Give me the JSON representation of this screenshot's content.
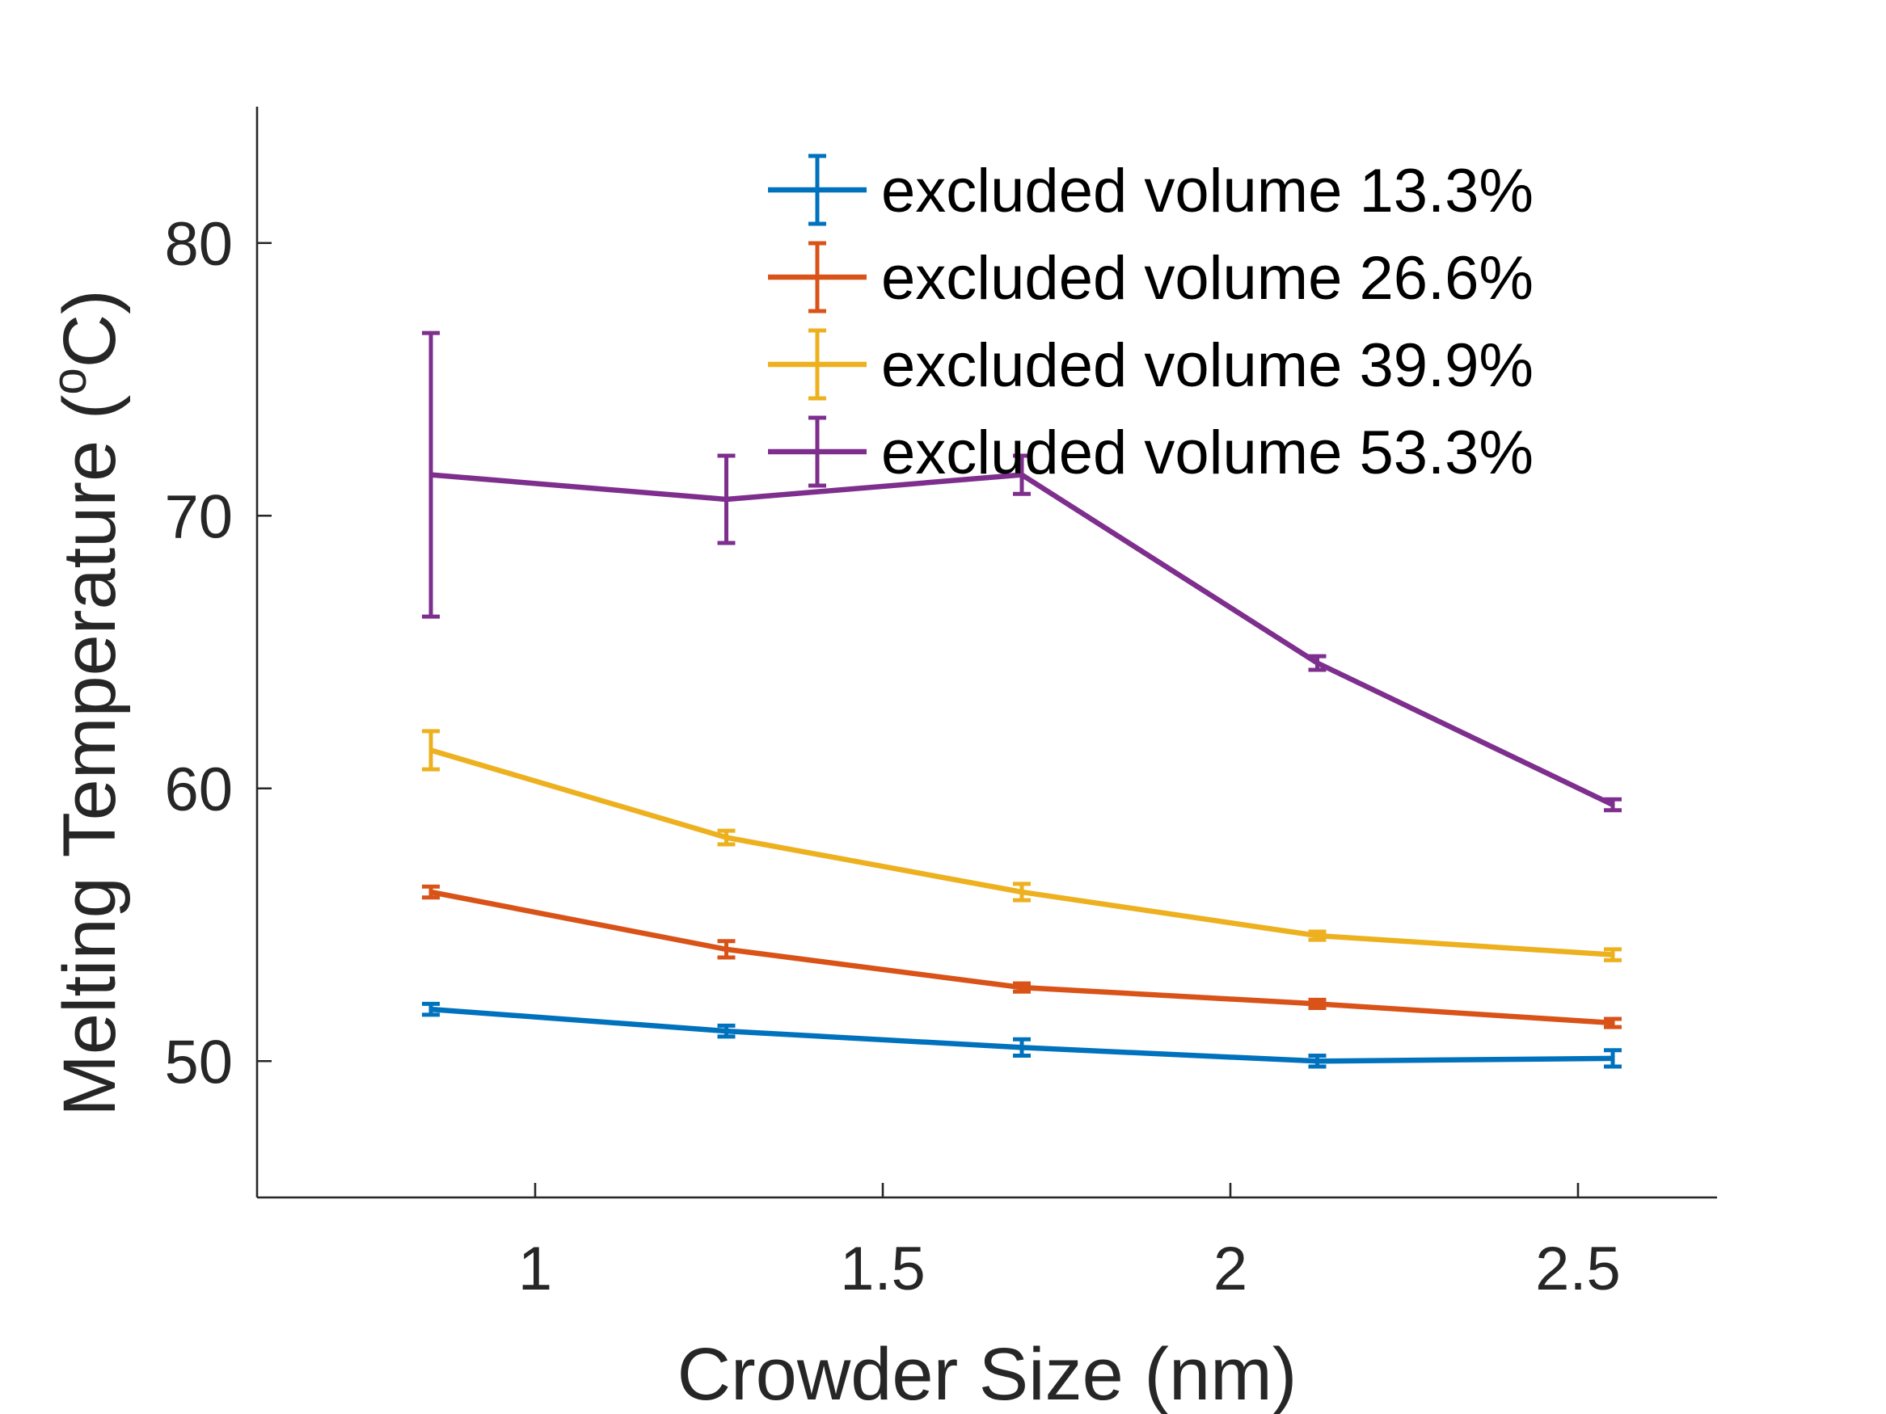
{
  "chart_data": {
    "type": "line",
    "xlabel": "Crowder Size (nm)",
    "ylabel_main": "Melting Temperature (",
    "ylabel_sup": "o",
    "ylabel_end": "C)",
    "xlim": [
      0.6,
      2.7
    ],
    "ylim": [
      45,
      85
    ],
    "xticks": [
      1,
      1.5,
      2,
      2.5
    ],
    "xtick_labels": [
      "1",
      "1.5",
      "2",
      "2.5"
    ],
    "yticks": [
      50,
      60,
      70,
      80
    ],
    "ytick_labels": [
      "50",
      "60",
      "70",
      "80"
    ],
    "grid": false,
    "legend_position": "top-right",
    "x": [
      0.85,
      1.275,
      1.7,
      2.125,
      2.55
    ],
    "series": [
      {
        "name": "excluded volume 13.3%",
        "color": "#0072BD",
        "values": [
          51.9,
          51.1,
          50.5,
          50.0,
          50.1
        ],
        "errors": [
          0.2,
          0.2,
          0.3,
          0.2,
          0.3
        ]
      },
      {
        "name": "excluded volume 26.6%",
        "color": "#D95319",
        "values": [
          56.2,
          54.1,
          52.7,
          52.1,
          51.4
        ],
        "errors": [
          0.2,
          0.3,
          0.15,
          0.15,
          0.15
        ]
      },
      {
        "name": "excluded volume 39.9%",
        "color": "#EDB120",
        "values": [
          61.4,
          58.2,
          56.2,
          54.6,
          53.9
        ],
        "errors": [
          0.7,
          0.25,
          0.3,
          0.15,
          0.2
        ]
      },
      {
        "name": "excluded volume 53.3%",
        "color": "#7E2F8E",
        "values": [
          71.5,
          70.6,
          71.5,
          64.6,
          59.4
        ],
        "errors": [
          5.2,
          1.6,
          0.7,
          0.25,
          0.2
        ]
      }
    ]
  }
}
